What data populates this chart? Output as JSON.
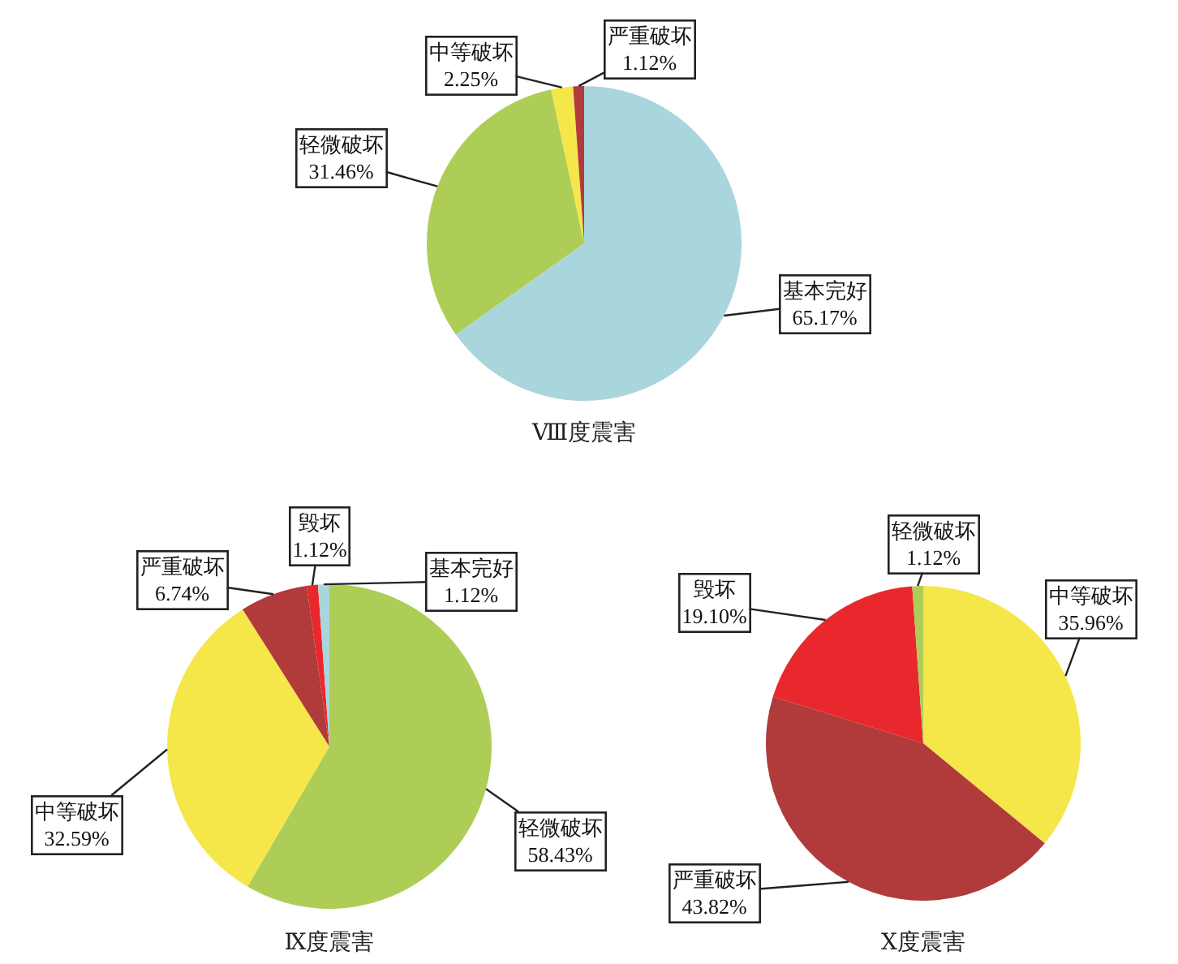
{
  "chart_data": [
    {
      "type": "pie",
      "title": "Ⅷ度震害",
      "categories": [
        "基本完好",
        "轻微破坏",
        "中等破坏",
        "严重破坏"
      ],
      "values": [
        65.17,
        31.46,
        2.25,
        1.12
      ],
      "value_labels": [
        "65.17%",
        "31.46%",
        "2.25%",
        "1.12%"
      ],
      "colors": [
        "#a9d6dd",
        "#aecd57",
        "#f5e74a",
        "#b13a3a"
      ]
    },
    {
      "type": "pie",
      "title": "Ⅸ度震害",
      "categories": [
        "轻微破坏",
        "中等破坏",
        "严重破坏",
        "毁坏",
        "基本完好"
      ],
      "values": [
        58.43,
        32.59,
        6.74,
        1.12,
        1.12
      ],
      "value_labels": [
        "58.43%",
        "32.59%",
        "6.74%",
        "1.12%",
        "1.12%"
      ],
      "colors": [
        "#aecd57",
        "#f5e74a",
        "#b13a3a",
        "#e8282c",
        "#a9d6dd"
      ]
    },
    {
      "type": "pie",
      "title": "Ⅹ度震害",
      "categories": [
        "中等破坏",
        "严重破坏",
        "毁坏",
        "轻微破坏"
      ],
      "values": [
        35.96,
        43.82,
        19.1,
        1.12
      ],
      "value_labels": [
        "35.96%",
        "43.82%",
        "19.10%",
        "1.12%"
      ],
      "colors": [
        "#f5e74a",
        "#b13a3a",
        "#e8282c",
        "#aecd57"
      ]
    }
  ]
}
